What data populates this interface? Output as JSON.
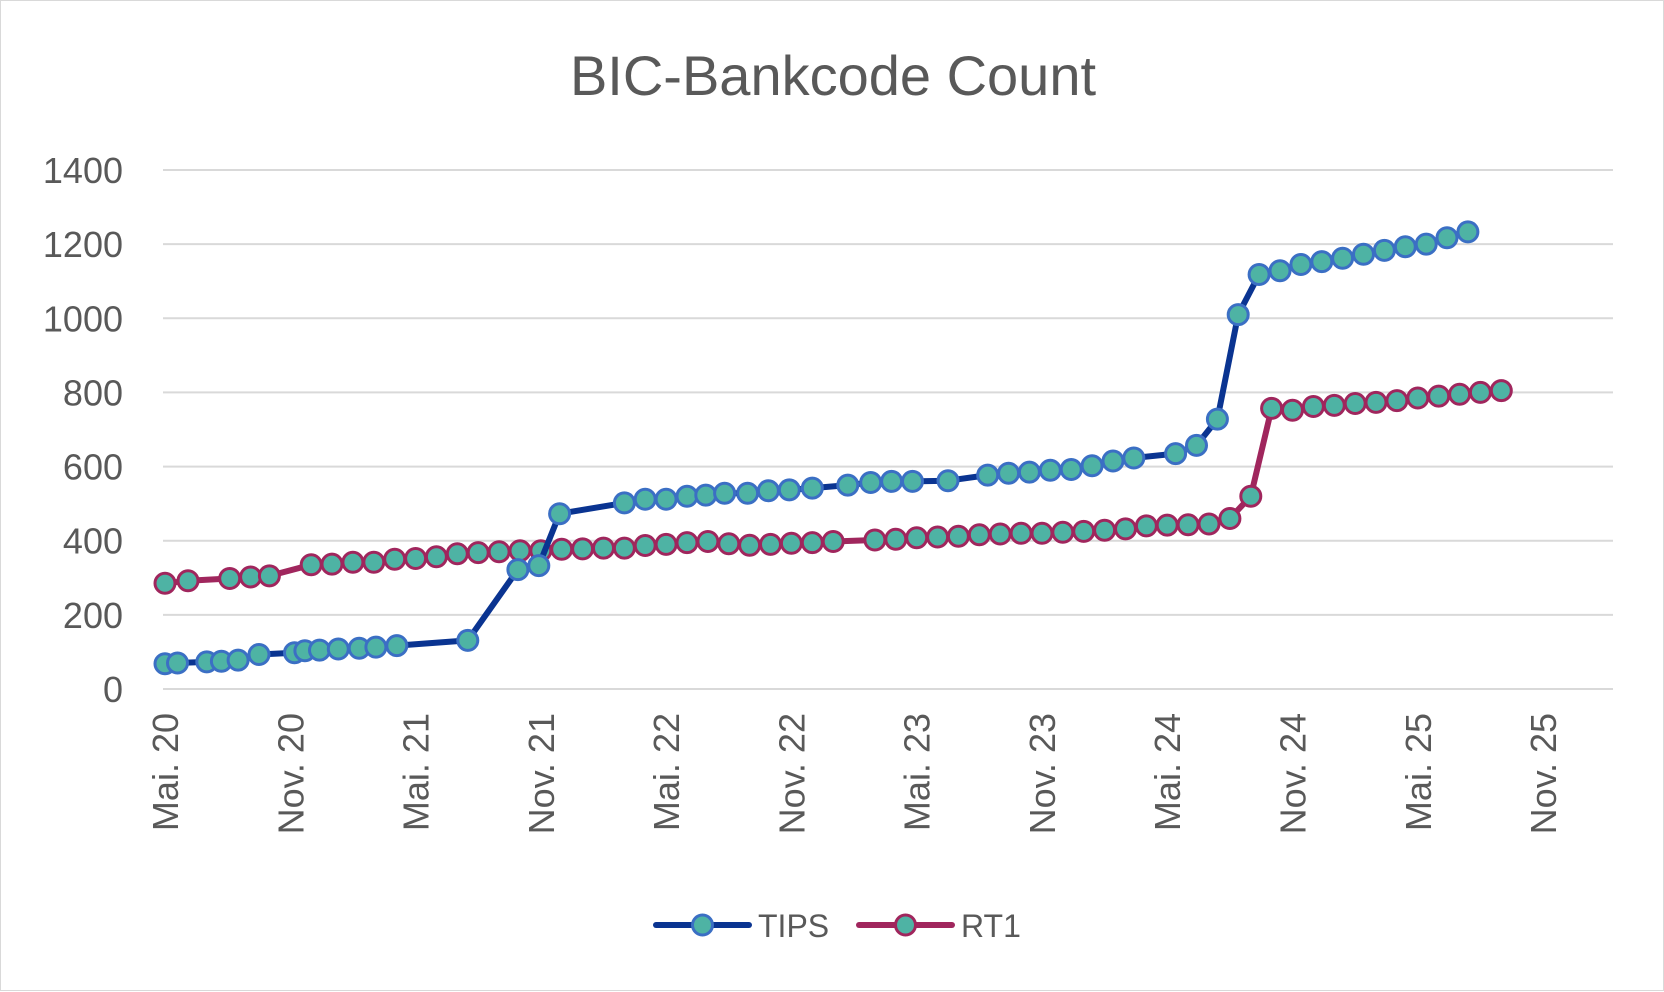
{
  "chart_data": {
    "type": "line",
    "title": "BIC-Bankcode Count",
    "xlabel": "",
    "ylabel": "",
    "ylim": [
      0,
      1400
    ],
    "yticks": [
      "0",
      "200",
      "400",
      "600",
      "800",
      "1000",
      "1200",
      "1400"
    ],
    "xtick_labels": [
      "Mai. 20",
      "Nov. 20",
      "Mai. 21",
      "Nov. 21",
      "Mai. 22",
      "Nov. 22",
      "Mai. 23",
      "Nov. 23",
      "Mai. 24",
      "Nov. 24",
      "Mai. 25",
      "Nov. 25"
    ],
    "x_unit": "months since Mai. 20",
    "grid": true,
    "legend": "bottom",
    "marker_fill": "#4eb3a4",
    "series": [
      {
        "name": "TIPS",
        "color": "#0a3491",
        "marker_edge": "#3b6fc4",
        "points": [
          [
            0,
            68
          ],
          [
            0.6,
            70
          ],
          [
            2,
            73
          ],
          [
            2.7,
            75
          ],
          [
            3.5,
            78
          ],
          [
            4.5,
            93
          ],
          [
            6.2,
            98
          ],
          [
            6.7,
            103
          ],
          [
            7.4,
            105
          ],
          [
            8.3,
            108
          ],
          [
            9.3,
            110
          ],
          [
            10.1,
            113
          ],
          [
            11.1,
            117
          ],
          [
            14.5,
            131
          ],
          [
            16.9,
            322
          ],
          [
            17.9,
            333
          ],
          [
            18.9,
            473
          ],
          [
            22.0,
            502
          ],
          [
            23.0,
            512
          ],
          [
            24.0,
            512
          ],
          [
            25.0,
            520
          ],
          [
            25.9,
            523
          ],
          [
            26.8,
            528
          ],
          [
            27.9,
            528
          ],
          [
            28.9,
            535
          ],
          [
            29.9,
            537
          ],
          [
            31.0,
            542
          ],
          [
            32.7,
            550
          ],
          [
            33.8,
            557
          ],
          [
            34.8,
            560
          ],
          [
            35.8,
            560
          ],
          [
            37.5,
            562
          ],
          [
            39.4,
            577
          ],
          [
            40.4,
            582
          ],
          [
            41.4,
            585
          ],
          [
            42.4,
            590
          ],
          [
            43.4,
            592
          ],
          [
            44.4,
            602
          ],
          [
            45.4,
            615
          ],
          [
            46.4,
            623
          ],
          [
            48.4,
            635
          ],
          [
            49.4,
            657
          ],
          [
            50.4,
            728
          ],
          [
            51.4,
            1010
          ],
          [
            52.4,
            1118
          ],
          [
            53.4,
            1128
          ],
          [
            54.4,
            1145
          ],
          [
            55.4,
            1153
          ],
          [
            56.4,
            1162
          ],
          [
            57.4,
            1173
          ],
          [
            58.4,
            1183
          ],
          [
            59.4,
            1193
          ],
          [
            60.4,
            1200
          ],
          [
            61.4,
            1217
          ],
          [
            62.4,
            1233
          ]
        ]
      },
      {
        "name": "RT1",
        "color": "#a0265d",
        "marker_edge": "#a0265d",
        "points": [
          [
            0,
            285
          ],
          [
            1.1,
            292
          ],
          [
            3.1,
            298
          ],
          [
            4.1,
            302
          ],
          [
            5.0,
            305
          ],
          [
            7.0,
            335
          ],
          [
            8.0,
            337
          ],
          [
            9.0,
            342
          ],
          [
            10.0,
            342
          ],
          [
            11.0,
            350
          ],
          [
            12.0,
            352
          ],
          [
            13.0,
            357
          ],
          [
            14.0,
            365
          ],
          [
            15.0,
            368
          ],
          [
            16.0,
            370
          ],
          [
            17.0,
            373
          ],
          [
            18.0,
            373
          ],
          [
            19.0,
            377
          ],
          [
            20.0,
            378
          ],
          [
            21.0,
            380
          ],
          [
            22.0,
            380
          ],
          [
            23.0,
            387
          ],
          [
            24.0,
            390
          ],
          [
            25.0,
            395
          ],
          [
            26.0,
            398
          ],
          [
            27.0,
            392
          ],
          [
            28.0,
            388
          ],
          [
            29.0,
            390
          ],
          [
            30.0,
            393
          ],
          [
            31.0,
            395
          ],
          [
            32.0,
            398
          ],
          [
            34.0,
            402
          ],
          [
            35.0,
            404
          ],
          [
            36.0,
            408
          ],
          [
            37.0,
            410
          ],
          [
            38.0,
            412
          ],
          [
            39.0,
            416
          ],
          [
            40.0,
            418
          ],
          [
            41.0,
            420
          ],
          [
            42.0,
            420
          ],
          [
            43.0,
            423
          ],
          [
            44.0,
            425
          ],
          [
            45.0,
            428
          ],
          [
            46.0,
            432
          ],
          [
            47.0,
            440
          ],
          [
            48.0,
            442
          ],
          [
            49.0,
            443
          ],
          [
            50.0,
            445
          ],
          [
            51.0,
            460
          ],
          [
            52.0,
            520
          ],
          [
            53.0,
            757
          ],
          [
            54.0,
            752
          ],
          [
            55.0,
            762
          ],
          [
            56.0,
            765
          ],
          [
            57.0,
            770
          ],
          [
            58.0,
            773
          ],
          [
            59.0,
            778
          ],
          [
            60.0,
            785
          ],
          [
            61.0,
            790
          ],
          [
            62.0,
            795
          ],
          [
            63.0,
            800
          ],
          [
            64.0,
            805
          ]
        ]
      }
    ]
  }
}
